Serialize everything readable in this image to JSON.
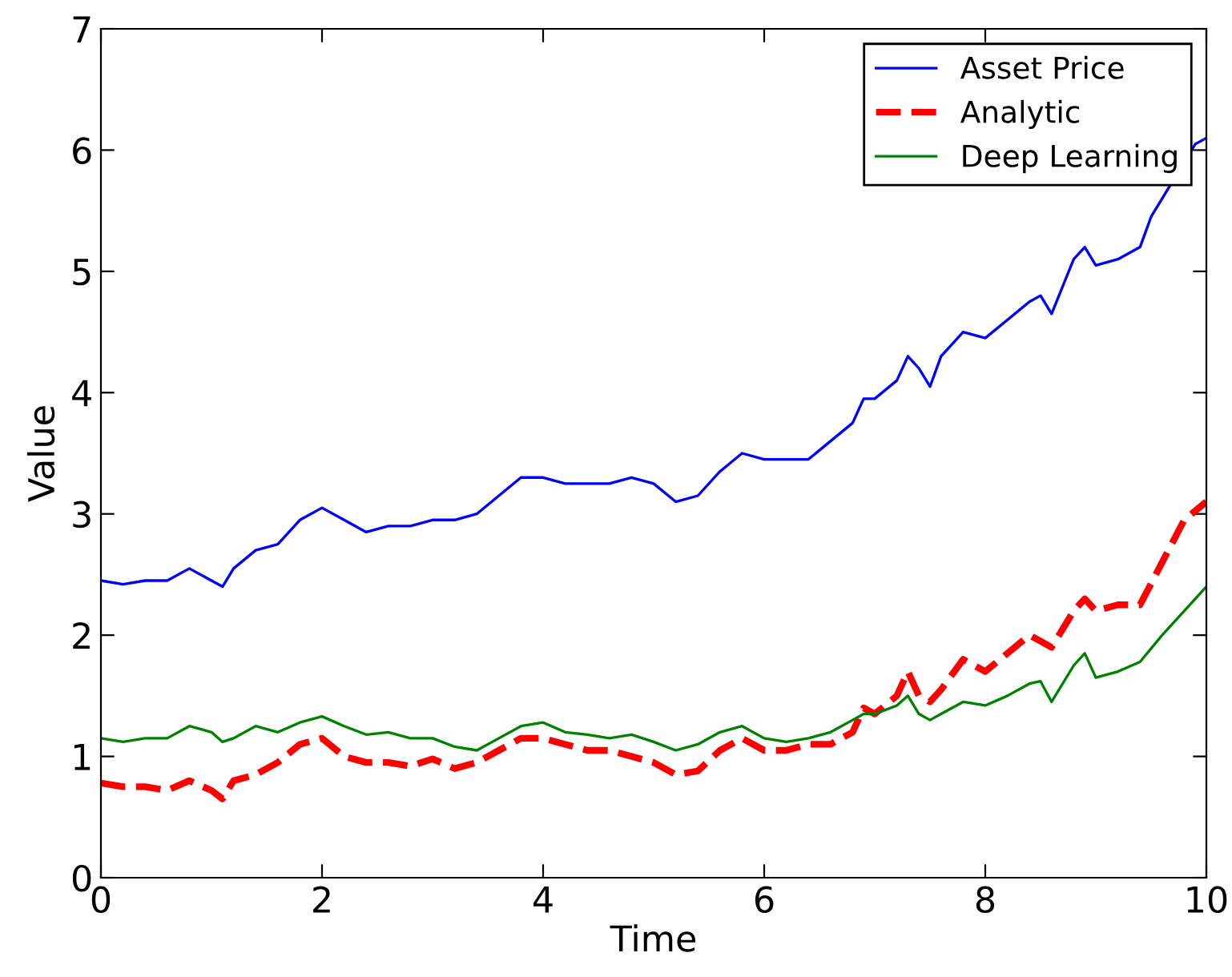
{
  "chart_data": {
    "type": "line",
    "xlabel": "Time",
    "ylabel": "Value",
    "x": [
      0,
      0.2,
      0.4,
      0.6,
      0.8,
      1.0,
      1.1,
      1.2,
      1.4,
      1.6,
      1.8,
      2.0,
      2.2,
      2.4,
      2.6,
      2.8,
      3.0,
      3.2,
      3.4,
      3.6,
      3.8,
      4.0,
      4.2,
      4.4,
      4.6,
      4.8,
      5.0,
      5.2,
      5.4,
      5.6,
      5.8,
      6.0,
      6.2,
      6.4,
      6.6,
      6.8,
      6.9,
      7.0,
      7.2,
      7.3,
      7.4,
      7.5,
      7.6,
      7.8,
      8.0,
      8.2,
      8.4,
      8.5,
      8.6,
      8.8,
      8.9,
      9.0,
      9.2,
      9.4,
      9.6,
      9.8,
      10
    ],
    "series": [
      {
        "name": "Asset Price",
        "color": "#0000ff",
        "line_style": "solid",
        "x": [
          0,
          0.2,
          0.4,
          0.6,
          0.8,
          1.0,
          1.1,
          1.2,
          1.4,
          1.6,
          1.8,
          2.0,
          2.2,
          2.4,
          2.6,
          2.8,
          3.0,
          3.2,
          3.4,
          3.6,
          3.8,
          4.0,
          4.2,
          4.4,
          4.6,
          4.8,
          5.0,
          5.2,
          5.4,
          5.6,
          5.8,
          6.0,
          6.2,
          6.4,
          6.6,
          6.8,
          6.9,
          7.0,
          7.2,
          7.3,
          7.4,
          7.5,
          7.6,
          7.8,
          8.0,
          8.2,
          8.4,
          8.5,
          8.6,
          8.8,
          8.9,
          9.0,
          9.2,
          9.4,
          9.5,
          9.9,
          10
        ],
        "values": [
          2.45,
          2.42,
          2.45,
          2.45,
          2.55,
          2.45,
          2.4,
          2.55,
          2.7,
          2.75,
          2.95,
          3.05,
          2.95,
          2.85,
          2.9,
          2.9,
          2.95,
          2.95,
          3.0,
          3.15,
          3.3,
          3.3,
          3.25,
          3.25,
          3.25,
          3.3,
          3.25,
          3.1,
          3.15,
          3.35,
          3.5,
          3.45,
          3.45,
          3.45,
          3.6,
          3.75,
          3.95,
          3.95,
          4.1,
          4.3,
          4.2,
          4.05,
          4.3,
          4.5,
          4.45,
          4.6,
          4.75,
          4.8,
          4.65,
          5.1,
          5.2,
          5.05,
          5.1,
          5.2,
          5.45,
          6.05,
          6.1
        ]
      },
      {
        "name": "Analytic",
        "color": "#ff0000",
        "line_style": "dashed",
        "values": [
          0.78,
          0.75,
          0.75,
          0.72,
          0.8,
          0.72,
          0.65,
          0.8,
          0.85,
          0.95,
          1.1,
          1.15,
          1.0,
          0.95,
          0.95,
          0.92,
          0.98,
          0.9,
          0.95,
          1.05,
          1.15,
          1.15,
          1.1,
          1.05,
          1.05,
          1.0,
          0.95,
          0.85,
          0.88,
          1.05,
          1.15,
          1.05,
          1.05,
          1.1,
          1.1,
          1.2,
          1.4,
          1.35,
          1.5,
          1.7,
          1.5,
          1.45,
          1.55,
          1.8,
          1.7,
          1.85,
          2.0,
          1.95,
          1.9,
          2.2,
          2.3,
          2.2,
          2.25,
          2.25,
          2.6,
          2.95,
          3.1
        ]
      },
      {
        "name": "Deep Learning",
        "color": "#008000",
        "line_style": "solid",
        "values": [
          1.15,
          1.12,
          1.15,
          1.15,
          1.25,
          1.2,
          1.12,
          1.15,
          1.25,
          1.2,
          1.28,
          1.33,
          1.25,
          1.18,
          1.2,
          1.15,
          1.15,
          1.08,
          1.05,
          1.15,
          1.25,
          1.28,
          1.2,
          1.18,
          1.15,
          1.18,
          1.12,
          1.05,
          1.1,
          1.2,
          1.25,
          1.15,
          1.12,
          1.15,
          1.2,
          1.3,
          1.35,
          1.35,
          1.42,
          1.5,
          1.35,
          1.3,
          1.35,
          1.45,
          1.42,
          1.5,
          1.6,
          1.62,
          1.45,
          1.75,
          1.85,
          1.65,
          1.7,
          1.78,
          2.0,
          2.2,
          2.4
        ]
      }
    ],
    "xlim": [
      0,
      10
    ],
    "ylim": [
      0,
      7
    ],
    "xticks": [
      0,
      2,
      4,
      6,
      8,
      10
    ],
    "yticks": [
      0,
      1,
      2,
      3,
      4,
      5,
      6,
      7
    ],
    "grid": false,
    "legend": "top right"
  }
}
